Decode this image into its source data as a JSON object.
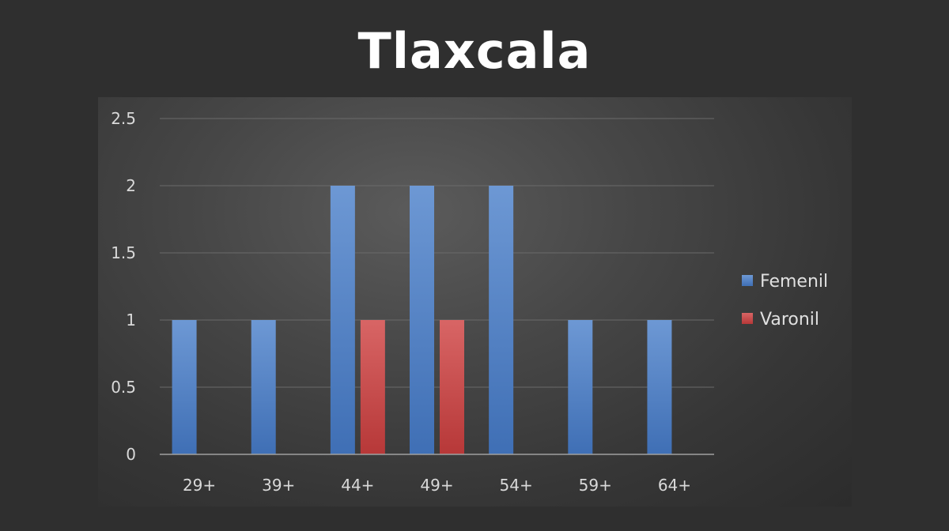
{
  "chart_data": {
    "type": "bar",
    "title": "Tlaxcala",
    "xlabel": "",
    "ylabel": "",
    "categories": [
      "29+",
      "39+",
      "44+",
      "49+",
      "54+",
      "59+",
      "64+"
    ],
    "series": [
      {
        "name": "Femenil",
        "values": [
          1,
          1,
          2,
          2,
          2,
          1,
          1
        ],
        "color": "#4a7cc1"
      },
      {
        "name": "Varonil",
        "values": [
          0,
          0,
          1,
          1,
          0,
          0,
          0
        ],
        "color": "#c24444"
      }
    ],
    "ylim": [
      0,
      2.5
    ],
    "yticks": [
      "0",
      "0.5",
      "1",
      "1.5",
      "2",
      "2.5"
    ],
    "grid": true,
    "legend_position": "right"
  }
}
